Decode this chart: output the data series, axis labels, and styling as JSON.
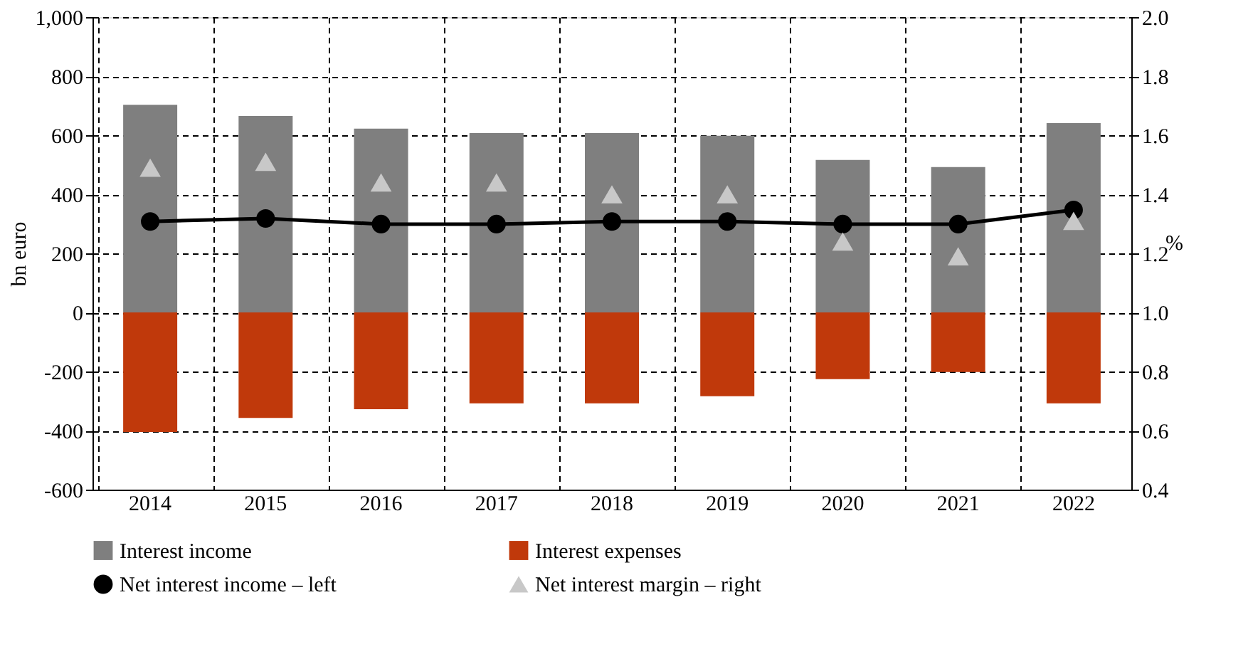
{
  "chart_data": {
    "type": "bar",
    "ylabel": "bn euro",
    "y2label": "%",
    "categories": [
      "2014",
      "2015",
      "2016",
      "2017",
      "2018",
      "2019",
      "2020",
      "2021",
      "2022"
    ],
    "stacked": true,
    "series": [
      {
        "name": "Interest income",
        "color": "#7f7f7f",
        "values": [
          703,
          665,
          622,
          607,
          607,
          598,
          516,
          492,
          641
        ]
      },
      {
        "name": "Interest expenses",
        "color": "#c0390b",
        "values": [
          -405,
          -357,
          -328,
          -308,
          -308,
          -284,
          -226,
          -202,
          -308
        ]
      },
      {
        "name": "Net interest income – left",
        "color": "#000000",
        "type": "line",
        "marker": "circle",
        "values": [
          308,
          318,
          299,
          299,
          308,
          308,
          299,
          299,
          347
        ]
      },
      {
        "name": "Net interest margin – right",
        "color": "#c8c8c8",
        "type": "scatter",
        "marker": "triangle",
        "axis": "y2",
        "values": [
          1.49,
          1.51,
          1.44,
          1.44,
          1.4,
          1.4,
          1.24,
          1.19,
          1.31
        ]
      }
    ],
    "ylim": [
      -600,
      1000
    ],
    "yticks": [
      -600,
      -400,
      -200,
      0,
      200,
      400,
      600,
      800,
      {
        "value": 1000,
        "label": "1,000"
      }
    ],
    "y2lim": [
      0.4,
      2.0
    ],
    "y2ticks": [
      0.4,
      0.6,
      0.8,
      {
        "value": 1.0,
        "label": "1.0"
      },
      1.2,
      1.4,
      1.6,
      1.8,
      {
        "value": 2.0,
        "label": "2.0"
      }
    ],
    "grid": true,
    "legend": "bottom"
  }
}
